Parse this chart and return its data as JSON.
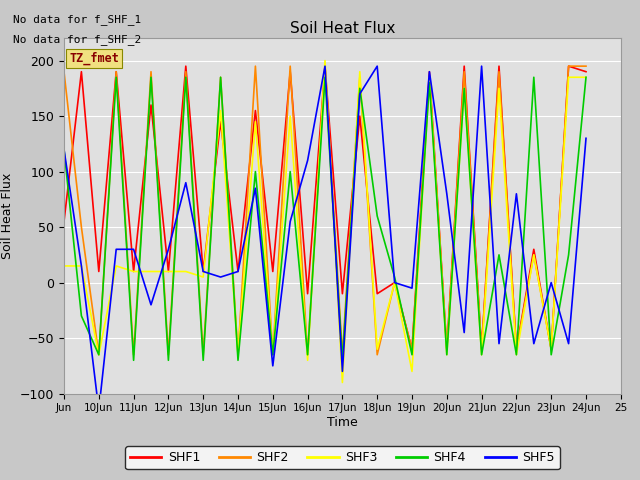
{
  "title": "Soil Heat Flux",
  "ylabel": "Soil Heat Flux",
  "xlabel": "Time",
  "annotation_text": "TZ_fmet",
  "no_data_texts": [
    "No data for f_SHF_1",
    "No data for f_SHF_2"
  ],
  "legend_labels": [
    "SHF1",
    "SHF2",
    "SHF3",
    "SHF4",
    "SHF5"
  ],
  "colors": {
    "SHF1": "#ff0000",
    "SHF2": "#ff8800",
    "SHF3": "#ffff00",
    "SHF4": "#00cc00",
    "SHF5": "#0000ff"
  },
  "ylim": [
    -100,
    220
  ],
  "yticks": [
    -100,
    -50,
    0,
    50,
    100,
    150,
    200
  ],
  "xtick_positions": [
    9,
    10,
    11,
    12,
    13,
    14,
    15,
    16,
    17,
    18,
    19,
    20,
    21,
    22,
    23,
    24,
    25
  ],
  "xtick_labels": [
    "Jun",
    "10Jun",
    "11Jun",
    "12Jun",
    "13Jun",
    "14Jun",
    "15Jun",
    "16Jun",
    "17Jun",
    "18Jun",
    "19Jun",
    "20Jun",
    "21Jun",
    "22Jun",
    "23Jun",
    "24Jun",
    "25"
  ],
  "shf1_x": [
    9,
    9.5,
    10,
    10.5,
    11,
    11.5,
    12,
    12.5,
    13,
    13.5,
    14,
    14.5,
    15,
    15.5,
    16,
    16.5,
    17,
    17.5,
    18,
    18.5,
    19,
    19.5,
    20,
    20.5,
    21,
    21.5,
    22,
    22.5,
    23,
    23.5,
    24
  ],
  "shf1_y": [
    55,
    190,
    10,
    190,
    10,
    160,
    10,
    195,
    10,
    145,
    10,
    155,
    10,
    190,
    -10,
    195,
    -10,
    150,
    -10,
    0,
    -60,
    190,
    -60,
    195,
    -60,
    195,
    -60,
    30,
    -60,
    195,
    190
  ],
  "shf2_x": [
    9,
    9.5,
    10,
    10.5,
    11,
    11.5,
    12,
    12.5,
    13,
    13.5,
    14,
    14.5,
    15,
    15.5,
    16,
    16.5,
    17,
    17.5,
    18,
    18.5,
    19,
    19.5,
    20,
    20.5,
    21,
    21.5,
    22,
    22.5,
    23,
    23.5,
    24
  ],
  "shf2_y": [
    190,
    50,
    -65,
    190,
    -65,
    190,
    -65,
    190,
    -65,
    185,
    -65,
    195,
    -65,
    195,
    -65,
    195,
    -65,
    185,
    -65,
    0,
    -60,
    185,
    -60,
    190,
    -60,
    190,
    -60,
    25,
    -60,
    195,
    195
  ],
  "shf3_x": [
    9,
    9.5,
    10,
    10.5,
    11,
    11.5,
    12,
    12.5,
    13,
    13.5,
    14,
    14.5,
    15,
    15.5,
    16,
    16.5,
    17,
    17.5,
    18,
    18.5,
    19,
    19.5,
    20,
    20.5,
    21,
    21.5,
    22,
    22.5,
    23,
    23.5,
    24
  ],
  "shf3_y": [
    15,
    15,
    -65,
    15,
    10,
    10,
    10,
    10,
    5,
    155,
    -65,
    145,
    -65,
    150,
    -70,
    200,
    -90,
    190,
    -60,
    0,
    -80,
    185,
    -65,
    175,
    -65,
    175,
    -65,
    25,
    -60,
    185,
    185
  ],
  "shf4_x": [
    9,
    9.5,
    10,
    10.5,
    11,
    11.5,
    12,
    12.5,
    13,
    13.5,
    14,
    14.5,
    15,
    15.5,
    16,
    16.5,
    17,
    17.5,
    18,
    18.5,
    19,
    19.5,
    20,
    20.5,
    21,
    21.5,
    22,
    22.5,
    23,
    23.5,
    24
  ],
  "shf4_y": [
    120,
    -30,
    -65,
    185,
    -70,
    185,
    -70,
    185,
    -70,
    185,
    -70,
    100,
    -65,
    100,
    -65,
    185,
    -70,
    175,
    60,
    5,
    -65,
    180,
    -65,
    175,
    -65,
    25,
    -65,
    185,
    -65,
    25,
    185
  ],
  "shf5_x": [
    9,
    9.5,
    10,
    10.5,
    11,
    11.5,
    12,
    12.5,
    13,
    13.5,
    14,
    14.5,
    15,
    15.5,
    16,
    16.5,
    17,
    17.5,
    18,
    18.5,
    19,
    19.5,
    20,
    20.5,
    21,
    21.5,
    22,
    22.5,
    23,
    23.5,
    24
  ],
  "shf5_y": [
    120,
    15,
    -115,
    30,
    30,
    -20,
    30,
    90,
    10,
    5,
    10,
    85,
    -75,
    55,
    110,
    195,
    -80,
    170,
    195,
    0,
    -5,
    190,
    80,
    -45,
    195,
    -55,
    80,
    -55,
    0,
    -55,
    130
  ]
}
